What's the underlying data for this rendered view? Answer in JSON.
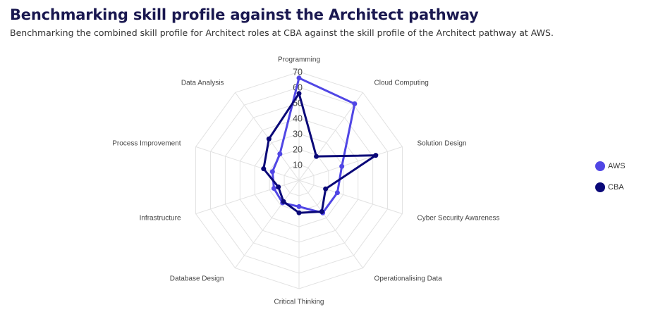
{
  "page": {
    "title": "Benchmarking skill profile against the Architect pathway",
    "subtitle": "Benchmarking the combined skill profile for Architect roles at CBA against the skill profile of the Architect pathway at AWS."
  },
  "chart_data": {
    "type": "radar",
    "axes": [
      "Programming",
      "Cloud Computing",
      "Solution Design",
      "Cyber Security Awareness",
      "Operationalising Data",
      "Critical Thinking",
      "Database Design",
      "Infrastructure",
      "Process Improvement",
      "Data Analysis"
    ],
    "radial_ticks": [
      "10",
      "20",
      "30",
      "40",
      "50",
      "60",
      "70"
    ],
    "r_range": [
      0,
      70
    ],
    "grid": true,
    "legend_position": "right",
    "series": [
      {
        "name": "AWS",
        "color": "#5046e5",
        "values": [
          66,
          61,
          29,
          26,
          26,
          17,
          18,
          17,
          18,
          21
        ]
      },
      {
        "name": "CBA",
        "color": "#0a0878",
        "values": [
          56,
          19,
          52,
          18,
          25,
          21,
          17,
          14,
          24,
          33
        ]
      }
    ]
  }
}
